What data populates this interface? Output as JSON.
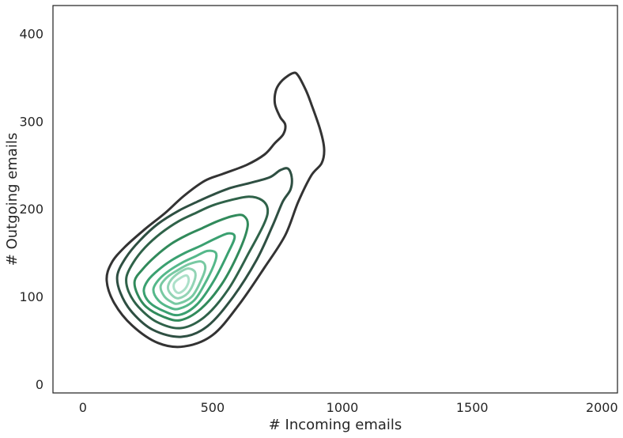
{
  "chart_data": {
    "type": "kde-contour",
    "title": "",
    "xlabel": "# Incoming emails",
    "ylabel": "# Outgoing emails",
    "xlim": [
      -115,
      2060
    ],
    "ylim": [
      -10,
      432
    ],
    "xticks": [
      0,
      500,
      1000,
      1500,
      2000
    ],
    "yticks": [
      0,
      100,
      200,
      300,
      400
    ],
    "grid": false,
    "palette": "light-green to dark-gray (outer levels darkest)",
    "contours": [
      {
        "level": 1,
        "color": "#333333",
        "points": [
          [
            390,
            43
          ],
          [
            500,
            56
          ],
          [
            600,
            90
          ],
          [
            700,
            133
          ],
          [
            780,
            170
          ],
          [
            830,
            208
          ],
          [
            880,
            238
          ],
          [
            920,
            252
          ],
          [
            930,
            268
          ],
          [
            915,
            290
          ],
          [
            880,
            320
          ],
          [
            860,
            335
          ],
          [
            830,
            352
          ],
          [
            810,
            355
          ],
          [
            770,
            347
          ],
          [
            745,
            336
          ],
          [
            740,
            320
          ],
          [
            760,
            305
          ],
          [
            780,
            296
          ],
          [
            772,
            285
          ],
          [
            740,
            275
          ],
          [
            700,
            262
          ],
          [
            630,
            250
          ],
          [
            540,
            240
          ],
          [
            470,
            232
          ],
          [
            390,
            215
          ],
          [
            320,
            196
          ],
          [
            240,
            177
          ],
          [
            160,
            156
          ],
          [
            110,
            138
          ],
          [
            92,
            118
          ],
          [
            122,
            92
          ],
          [
            190,
            67
          ],
          [
            290,
            47
          ]
        ]
      },
      {
        "level": 2,
        "color": "#2e4f42",
        "points": [
          [
            380,
            54
          ],
          [
            480,
            66
          ],
          [
            580,
            100
          ],
          [
            670,
            142
          ],
          [
            730,
            180
          ],
          [
            770,
            208
          ],
          [
            800,
            222
          ],
          [
            805,
            236
          ],
          [
            790,
            246
          ],
          [
            760,
            244
          ],
          [
            720,
            236
          ],
          [
            650,
            230
          ],
          [
            570,
            224
          ],
          [
            500,
            216
          ],
          [
            440,
            208
          ],
          [
            370,
            198
          ],
          [
            290,
            183
          ],
          [
            220,
            164
          ],
          [
            165,
            144
          ],
          [
            133,
            124
          ],
          [
            145,
            104
          ],
          [
            190,
            82
          ],
          [
            270,
            62
          ]
        ]
      },
      {
        "level": 3,
        "color": "#2f6249",
        "points": [
          [
            378,
            64
          ],
          [
            470,
            77
          ],
          [
            560,
            108
          ],
          [
            640,
            150
          ],
          [
            700,
            184
          ],
          [
            712,
            200
          ],
          [
            690,
            210
          ],
          [
            640,
            214
          ],
          [
            570,
            210
          ],
          [
            500,
            204
          ],
          [
            440,
            196
          ],
          [
            370,
            186
          ],
          [
            300,
            172
          ],
          [
            240,
            156
          ],
          [
            195,
            139
          ],
          [
            168,
            122
          ],
          [
            176,
            106
          ],
          [
            215,
            88
          ],
          [
            285,
            71
          ]
        ]
      },
      {
        "level": 4,
        "color": "#318a5b",
        "points": [
          [
            376,
            73
          ],
          [
            455,
            86
          ],
          [
            535,
            114
          ],
          [
            600,
            150
          ],
          [
            635,
            180
          ],
          [
            620,
            192
          ],
          [
            580,
            192
          ],
          [
            520,
            186
          ],
          [
            460,
            178
          ],
          [
            400,
            170
          ],
          [
            340,
            160
          ],
          [
            280,
            146
          ],
          [
            230,
            131
          ],
          [
            200,
            118
          ],
          [
            210,
            103
          ],
          [
            245,
            88
          ],
          [
            310,
            77
          ]
        ]
      },
      {
        "level": 5,
        "color": "#3aa070",
        "points": [
          [
            372,
            79
          ],
          [
            440,
            91
          ],
          [
            505,
            118
          ],
          [
            560,
            150
          ],
          [
            585,
            168
          ],
          [
            560,
            172
          ],
          [
            510,
            166
          ],
          [
            455,
            158
          ],
          [
            395,
            150
          ],
          [
            340,
            141
          ],
          [
            290,
            130
          ],
          [
            250,
            118
          ],
          [
            235,
            106
          ],
          [
            258,
            93
          ],
          [
            315,
            83
          ]
        ]
      },
      {
        "level": 6,
        "color": "#55b88a",
        "points": [
          [
            370,
            86
          ],
          [
            430,
            96
          ],
          [
            478,
            119
          ],
          [
            510,
            140
          ],
          [
            512,
            150
          ],
          [
            480,
            152
          ],
          [
            435,
            146
          ],
          [
            385,
            139
          ],
          [
            335,
            130
          ],
          [
            295,
            120
          ],
          [
            272,
            108
          ],
          [
            290,
            96
          ],
          [
            330,
            88
          ]
        ]
      },
      {
        "level": 7,
        "color": "#78c9a2",
        "points": [
          [
            368,
            92
          ],
          [
            420,
            100
          ],
          [
            455,
            118
          ],
          [
            472,
            133
          ],
          [
            455,
            140
          ],
          [
            410,
            137
          ],
          [
            365,
            130
          ],
          [
            325,
            122
          ],
          [
            300,
            112
          ],
          [
            312,
            101
          ],
          [
            340,
            94
          ]
        ]
      },
      {
        "level": 8,
        "color": "#93d4b5",
        "points": [
          [
            368,
            98
          ],
          [
            405,
            104
          ],
          [
            430,
            118
          ],
          [
            432,
            128
          ],
          [
            405,
            132
          ],
          [
            370,
            127
          ],
          [
            340,
            119
          ],
          [
            328,
            110
          ],
          [
            342,
            102
          ]
        ]
      },
      {
        "level": 9,
        "color": "#ace0c9",
        "points": [
          [
            370,
            104
          ],
          [
            395,
            109
          ],
          [
            408,
            118
          ],
          [
            400,
            124
          ],
          [
            375,
            121
          ],
          [
            352,
            115
          ],
          [
            353,
            108
          ]
        ]
      }
    ]
  }
}
